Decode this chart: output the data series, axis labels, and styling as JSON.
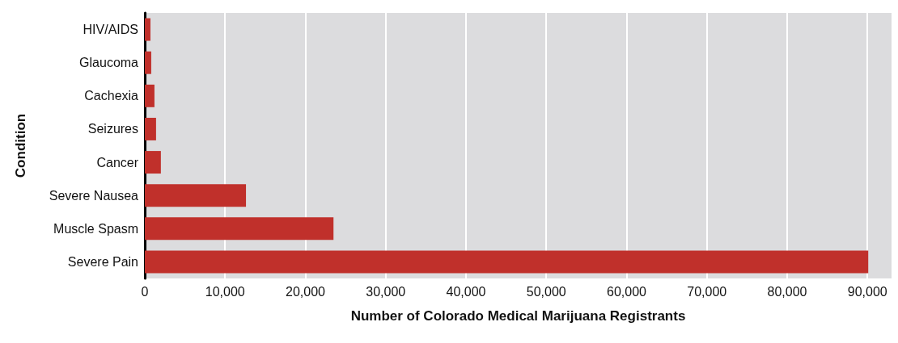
{
  "chart_data": {
    "type": "bar",
    "orientation": "horizontal",
    "xlabel": "Number of Colorado Medical Marijuana Registrants",
    "ylabel": "Condition",
    "categories": [
      "HIV/AIDS",
      "Glaucoma",
      "Cachexia",
      "Seizures",
      "Cancer",
      "Severe Nausea",
      "Muscle Spasm",
      "Severe Pain"
    ],
    "values": [
      700,
      800,
      1200,
      1400,
      2000,
      12600,
      23500,
      90100
    ],
    "color": "#c0302b",
    "xlim": [
      0,
      93000
    ],
    "xticks": [
      0,
      {
        "value": 10000,
        "label": "10,000"
      },
      {
        "value": 20000,
        "label": "20,000"
      },
      {
        "value": 30000,
        "label": "30,000"
      },
      {
        "value": 40000,
        "label": "40,000"
      },
      {
        "value": 50000,
        "label": "50,000"
      },
      {
        "value": 60000,
        "label": "60,000"
      },
      {
        "value": 70000,
        "label": "70,000"
      },
      {
        "value": 80000,
        "label": "80,000"
      },
      {
        "value": 90000,
        "label": "90,000"
      }
    ],
    "grid": "x"
  }
}
